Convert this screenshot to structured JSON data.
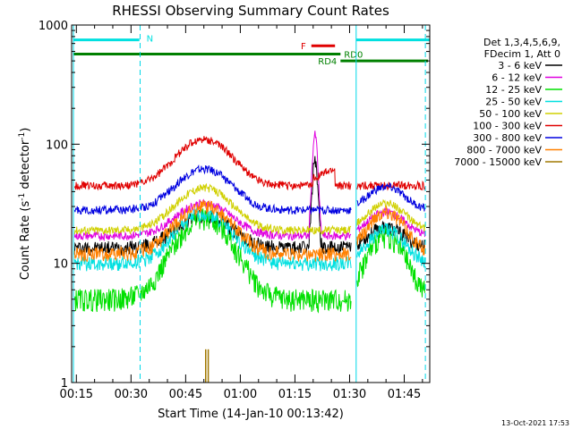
{
  "chart_data": {
    "type": "line",
    "title": "RHESSI Observing Summary Count Rates",
    "xlabel": "Start Time (14-Jan-10 00:13:42)",
    "ylabel": "Count Rate (s⁻¹ detector⁻¹)",
    "ylabel_main": "Count Rate (s",
    "ylabel_sup1": "-1",
    "ylabel_mid": " detector",
    "ylabel_sup2": "-1",
    "ylabel_end": ")",
    "yscale": "log",
    "ylim": [
      1,
      1000
    ],
    "xlim_min": [
      13.7,
      112
    ],
    "x_unit": "minutes after 00:00",
    "x_ticks": [
      {
        "t": 15,
        "label": "00:15"
      },
      {
        "t": 30,
        "label": "00:30"
      },
      {
        "t": 45,
        "label": "00:45"
      },
      {
        "t": 60,
        "label": "01:00"
      },
      {
        "t": 75,
        "label": "01:15"
      },
      {
        "t": 90,
        "label": "01:30"
      },
      {
        "t": 105,
        "label": "01:45"
      }
    ],
    "y_ticks": [
      {
        "v": 1,
        "label": "1"
      },
      {
        "v": 10,
        "label": "10"
      },
      {
        "v": 100,
        "label": "100"
      },
      {
        "v": 1000,
        "label": "1000"
      }
    ],
    "legend_header": [
      "Det 1,3,4,5,6,9,",
      "FDecim 1, Att 0"
    ],
    "series": [
      {
        "name": "3 - 6 keV",
        "color": "#000000",
        "base": 13.5,
        "peak": 25,
        "peak2": 20,
        "flare": 75
      },
      {
        "name": "6 - 12 keV",
        "color": "#e000e0",
        "base": 17,
        "peak": 32,
        "peak2": 27,
        "flare": 120
      },
      {
        "name": "12 - 25 keV",
        "color": "#00e000",
        "base": 5,
        "peak": 24,
        "peak2": 17,
        "flare": 0
      },
      {
        "name": "25 - 50 keV",
        "color": "#00e0e0",
        "base": 10,
        "peak": 26,
        "peak2": 19,
        "flare": 0
      },
      {
        "name": "50 - 100 keV",
        "color": "#d0d000",
        "base": 19,
        "peak": 43,
        "peak2": 32,
        "flare": 0
      },
      {
        "name": "100 - 300 keV",
        "color": "#e00000",
        "base": 45,
        "peak": 110,
        "peak2": 0,
        "flare": 0
      },
      {
        "name": "300 - 800 keV",
        "color": "#0000e0",
        "base": 28,
        "peak": 62,
        "peak2": 44,
        "flare": 0
      },
      {
        "name": "800 - 7000 keV",
        "color": "#ff8000",
        "base": 12,
        "peak": 30,
        "peak2": 27,
        "flare": 0
      },
      {
        "name": "7000 - 15000 keV",
        "color": "#a07800",
        "base": 0,
        "peak": 2,
        "peak2": 0,
        "flare": 0
      }
    ],
    "red_tail": [
      {
        "t": 80,
        "v": 56
      },
      {
        "t": 82,
        "v": 58
      },
      {
        "t": 85,
        "v": 60
      },
      {
        "t": 86,
        "v": 65
      }
    ],
    "flare_window": [
      79,
      83
    ],
    "gaps": [
      {
        "t0": 13.7,
        "t1": 14.4
      },
      {
        "t0": 32.3,
        "t1": 32.5
      },
      {
        "t0": 90.5,
        "t1": 92.0
      },
      {
        "t0": 110.8,
        "t1": 112
      }
    ],
    "vlines": [
      {
        "t": 14.2,
        "style": "solid"
      },
      {
        "t": 32.5,
        "style": "dashed"
      },
      {
        "t": 91.8,
        "style": "solid"
      },
      {
        "t": 110.8,
        "style": "dashed"
      }
    ],
    "flags": [
      {
        "label": "N",
        "color": "#00e0e0",
        "t0": 14.2,
        "t1": 32.3,
        "v": 750
      },
      {
        "label": "",
        "color": "#00e0e0",
        "t0": 91.8,
        "t1": 112,
        "v": 750
      },
      {
        "label": "F",
        "color": "#e00000",
        "t0": 79.5,
        "t1": 86.0,
        "v": 670
      },
      {
        "label": "RD0",
        "color": "#008000",
        "t0": 14.2,
        "t1": 87.5,
        "v": 570
      },
      {
        "label": "RD4",
        "color": "#008000",
        "t0": 87.5,
        "t1": 111.5,
        "v": 500
      }
    ],
    "spikes": [
      {
        "t": 50.5,
        "v": 1.9,
        "color": "#a07800"
      },
      {
        "t": 51.2,
        "v": 1.9,
        "color": "#a07800"
      }
    ],
    "timestamp": "13-Oct-2021 17:53"
  }
}
